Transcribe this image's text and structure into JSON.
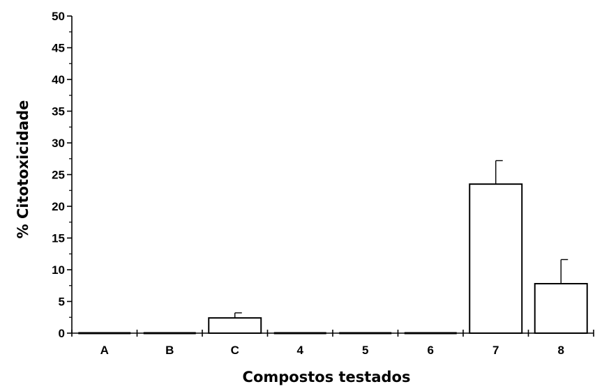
{
  "chart_data": {
    "type": "bar",
    "title": "",
    "xlabel": "Compostos testados",
    "ylabel": "% Citotoxicidade",
    "ylim": [
      0,
      50
    ],
    "yticks": [
      0,
      5,
      10,
      15,
      20,
      25,
      30,
      35,
      40,
      45,
      50
    ],
    "grid": false,
    "categories": [
      "A",
      "B",
      "C",
      "4",
      "5",
      "6",
      "7",
      "8"
    ],
    "values": [
      0,
      0,
      2.4,
      0,
      0,
      0,
      23.5,
      7.8
    ],
    "errors": [
      0,
      0,
      0.8,
      0,
      0,
      0,
      3.7,
      3.8
    ],
    "bar_fill": "#ffffff",
    "bar_stroke": "#000000"
  }
}
